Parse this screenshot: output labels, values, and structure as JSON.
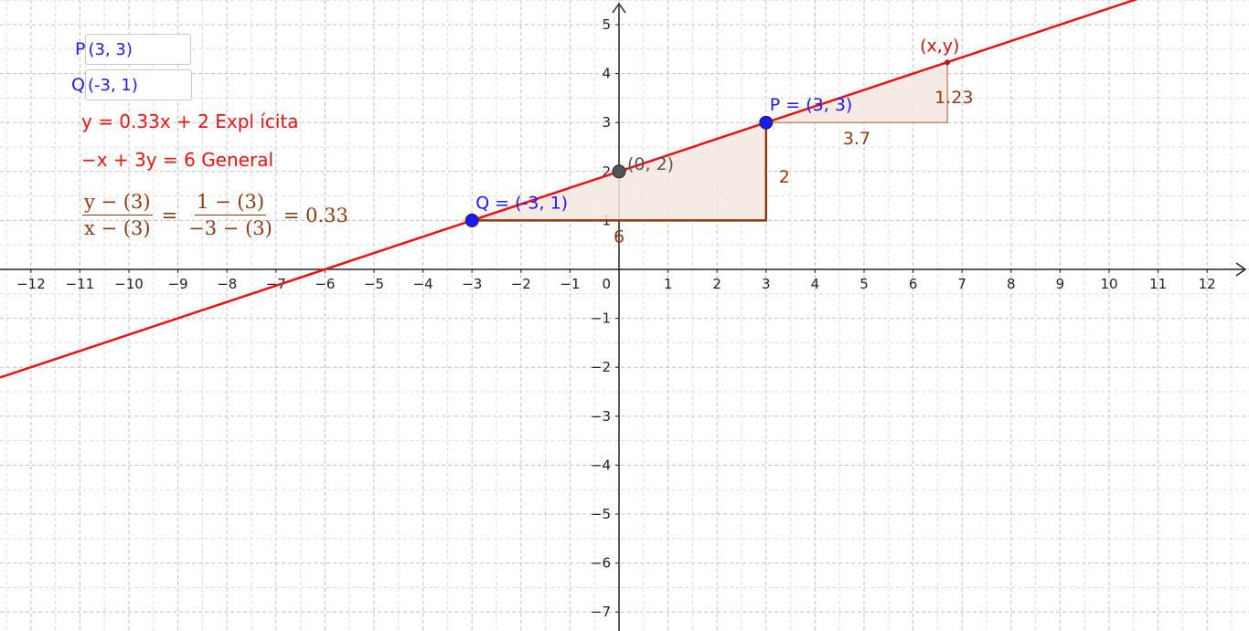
{
  "inputs": {
    "p": {
      "label": "P",
      "value": "(3, 3)"
    },
    "q": {
      "label": "Q",
      "value": "(-3, 1)"
    }
  },
  "algebra": {
    "explicit": {
      "equation": "y = 0.33x + 2",
      "label": "Expl ícita"
    },
    "general": {
      "equation": "−x + 3y = 6",
      "label": "General"
    },
    "slope_formula": {
      "num1": "y − (3)",
      "den1": "x − (3)",
      "eq": "=",
      "num2": "1 − (3)",
      "den2": "−3 − (3)",
      "result": "= 0.33"
    }
  },
  "chart_data": {
    "type": "line",
    "x_ticks": [
      -12,
      -11,
      -10,
      -9,
      -8,
      -7,
      -6,
      -5,
      -4,
      -3,
      -2,
      -1,
      0,
      1,
      2,
      3,
      4,
      5,
      6,
      7,
      8,
      9,
      10,
      11,
      12
    ],
    "y_ticks": [
      -7,
      -6,
      -5,
      -4,
      -3,
      -2,
      -1,
      1,
      2,
      3,
      4,
      5
    ],
    "origin_label": "0",
    "grid": true,
    "line": {
      "slope": 0.3333,
      "intercept": 2,
      "color": "#ee1111"
    },
    "points": [
      {
        "name": "P",
        "x": 3,
        "y": 3,
        "label": "P = (3, 3)",
        "color": "#1a1aff"
      },
      {
        "name": "Q",
        "x": -3,
        "y": 1,
        "label": "Q = (-3, 1)",
        "color": "#1a1aff"
      },
      {
        "name": "intercept",
        "x": 0,
        "y": 2,
        "label": "(0, 2)",
        "color": "#555555"
      },
      {
        "name": "xy",
        "x": 6.7,
        "y": 4.23,
        "label": "(x,y)",
        "color": "#cc1111"
      }
    ],
    "slope_triangles": [
      {
        "name": "large",
        "x1": -3,
        "y1": 1,
        "x2": 3,
        "y2": 3,
        "run_label": "6",
        "rise_label": "2"
      },
      {
        "name": "small",
        "x1": 3,
        "y1": 3,
        "x2": 6.7,
        "y2": 4.23,
        "run_label": "3.7",
        "rise_label": "1.23"
      }
    ],
    "colors": {
      "triangle_fill": "#f5e6e0",
      "triangle_stroke": "#8b3a12",
      "label": "#8b3a12"
    }
  }
}
